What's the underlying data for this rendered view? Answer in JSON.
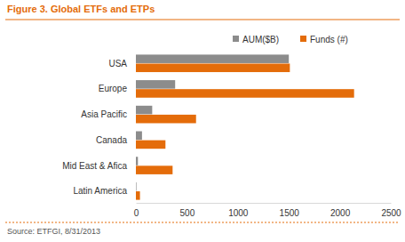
{
  "chart_data": {
    "type": "bar",
    "orientation": "horizontal",
    "title": "Figure 3. Global ETFs and ETPs",
    "categories": [
      "USA",
      "Europe",
      "Asia Pacific",
      "Canada",
      "Mid East & Afica",
      "Latin America"
    ],
    "series": [
      {
        "name": "AUM($B)",
        "color": "#8c8c8c",
        "values": [
          1500,
          385,
          160,
          60,
          20,
          5
        ]
      },
      {
        "name": "Funds (#)",
        "color": "#e46c0a",
        "values": [
          1510,
          2140,
          590,
          290,
          360,
          40
        ]
      }
    ],
    "xlim": [
      0,
      2500
    ],
    "xticks": [
      0,
      500,
      1000,
      1500,
      2000,
      2500
    ],
    "legend": "top",
    "grid": false,
    "source": "Source: ETFGI, 8/31/2013"
  }
}
